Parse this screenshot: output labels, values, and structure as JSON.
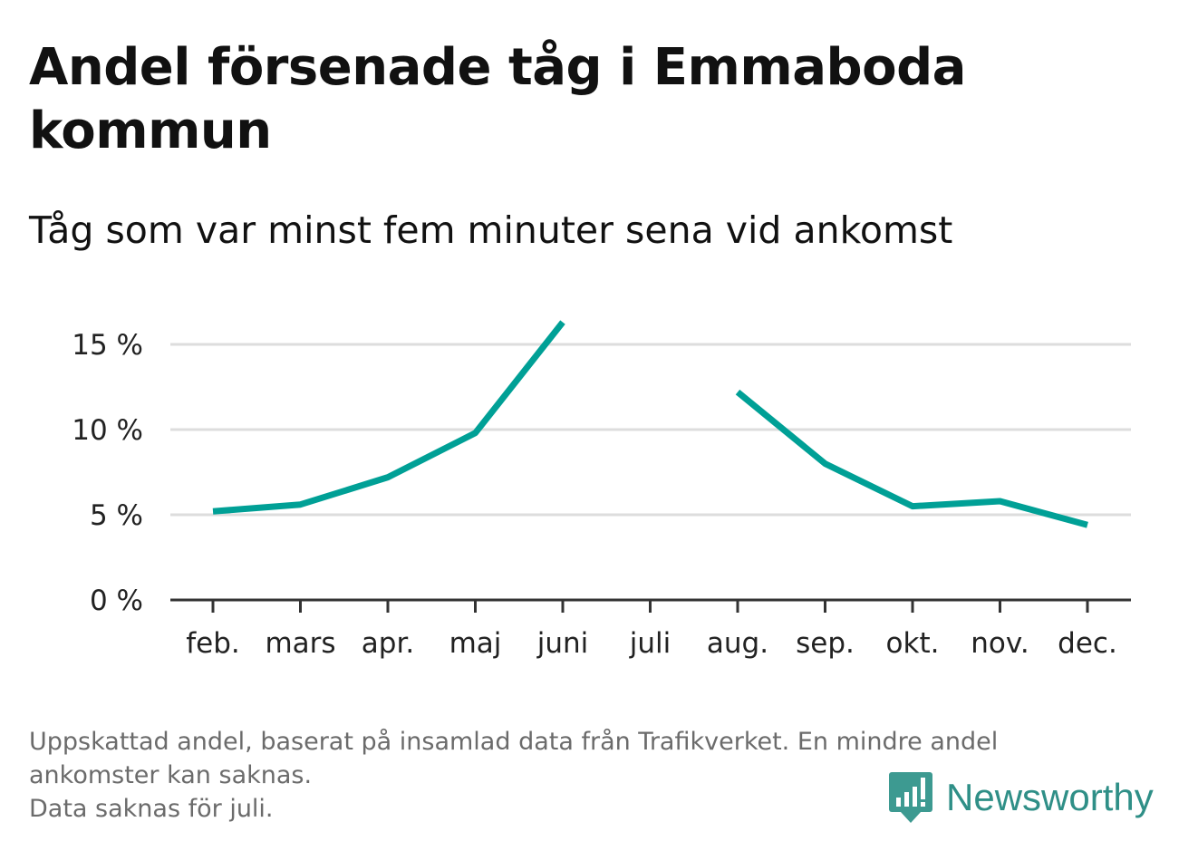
{
  "title": "Andel försenade tåg i Emmaboda kommun",
  "subtitle": "Tåg som var minst fem minuter sena vid ankomst",
  "footnote": {
    "line1": "Uppskattad andel, baserat på insamlad data från Trafikverket. En mindre andel",
    "line2": "ankomster kan saknas.",
    "line3": "Data saknas för juli."
  },
  "brand": {
    "name": "Newsworthy",
    "icon": "newsworthy-logo-icon",
    "color": "#3d9a91"
  },
  "colors": {
    "line": "#00a096",
    "grid": "#dddddd",
    "axis": "#333333"
  },
  "chart_data": {
    "type": "line",
    "categories": [
      "feb.",
      "mars",
      "apr.",
      "maj",
      "juni",
      "juli",
      "aug.",
      "sep.",
      "okt.",
      "nov.",
      "dec."
    ],
    "series": [
      {
        "values": [
          5.2,
          5.6,
          7.2,
          9.8,
          16.3,
          null,
          12.2,
          8.0,
          5.5,
          5.8,
          4.4
        ]
      }
    ],
    "ylim": [
      0,
      17.5
    ],
    "yticks": [
      0,
      5,
      10,
      15
    ],
    "ytick_labels": [
      "0 %",
      "5 %",
      "10 %",
      "15 %"
    ],
    "grid": true,
    "xlabel": "",
    "ylabel": ""
  }
}
